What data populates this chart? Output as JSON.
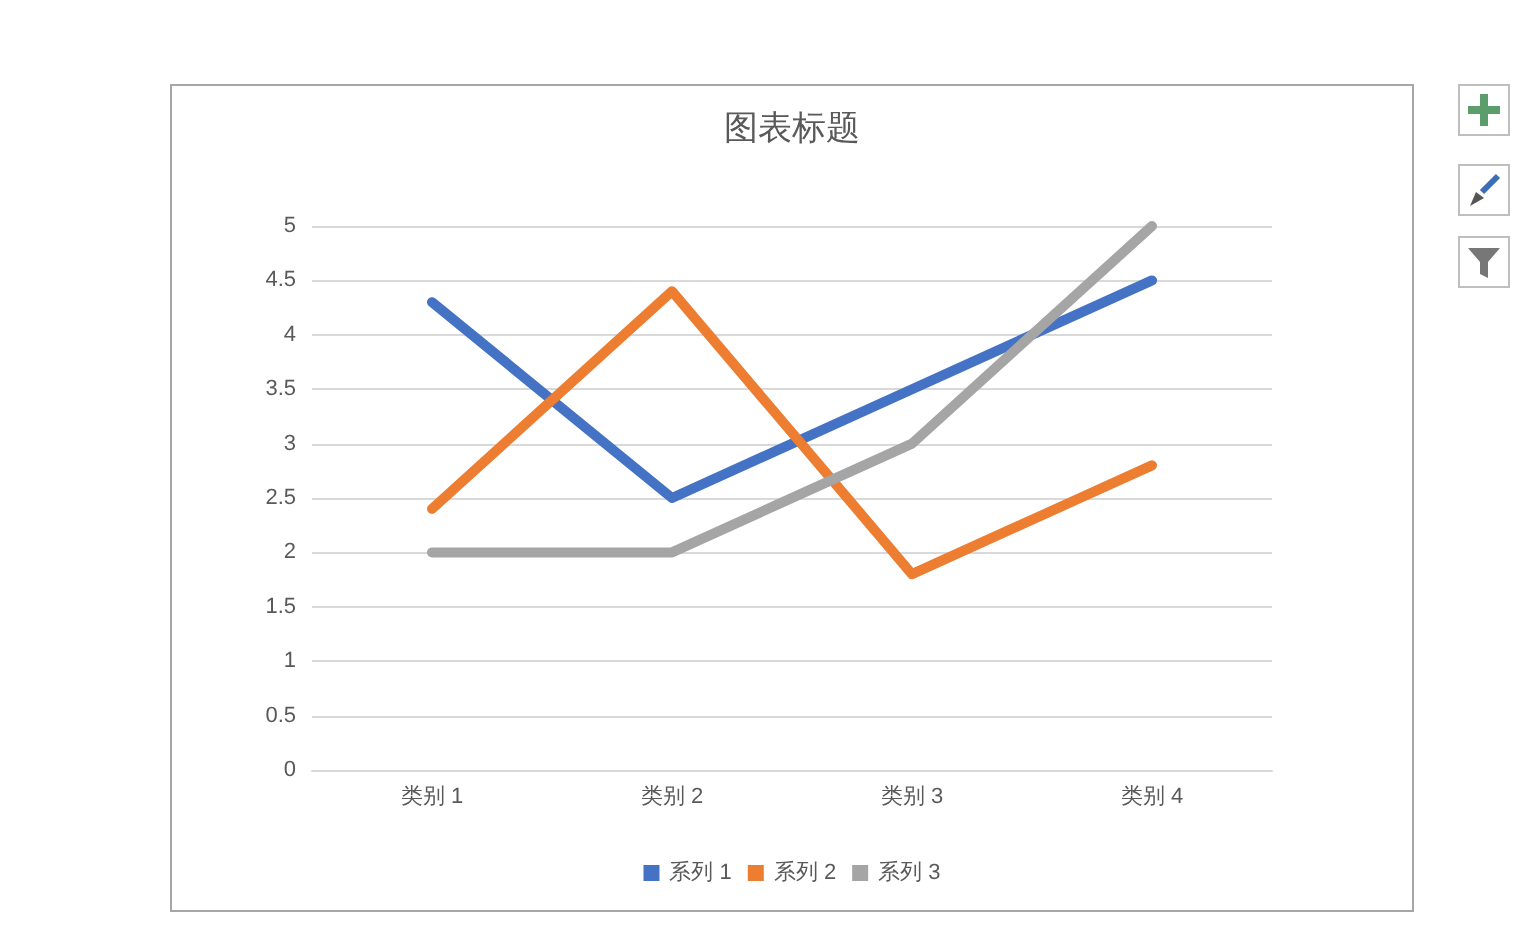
{
  "chart_data": {
    "type": "line",
    "title": "图表标题",
    "categories": [
      "类别 1",
      "类别 2",
      "类别 3",
      "类别 4"
    ],
    "series": [
      {
        "name": "系列 1",
        "color": "#4472c4",
        "values": [
          4.3,
          2.5,
          3.5,
          4.5
        ]
      },
      {
        "name": "系列 2",
        "color": "#ed7d31",
        "values": [
          2.4,
          4.4,
          1.8,
          2.8
        ]
      },
      {
        "name": "系列 3",
        "color": "#a5a5a5",
        "values": [
          2,
          2,
          3,
          5
        ]
      }
    ],
    "ylim": [
      0,
      5
    ],
    "yticks": [
      0,
      0.5,
      1,
      1.5,
      2,
      2.5,
      3,
      3.5,
      4,
      4.5,
      5
    ],
    "grid": "y",
    "legend": "bottom",
    "marker": "none",
    "line_style": "solid"
  }
}
